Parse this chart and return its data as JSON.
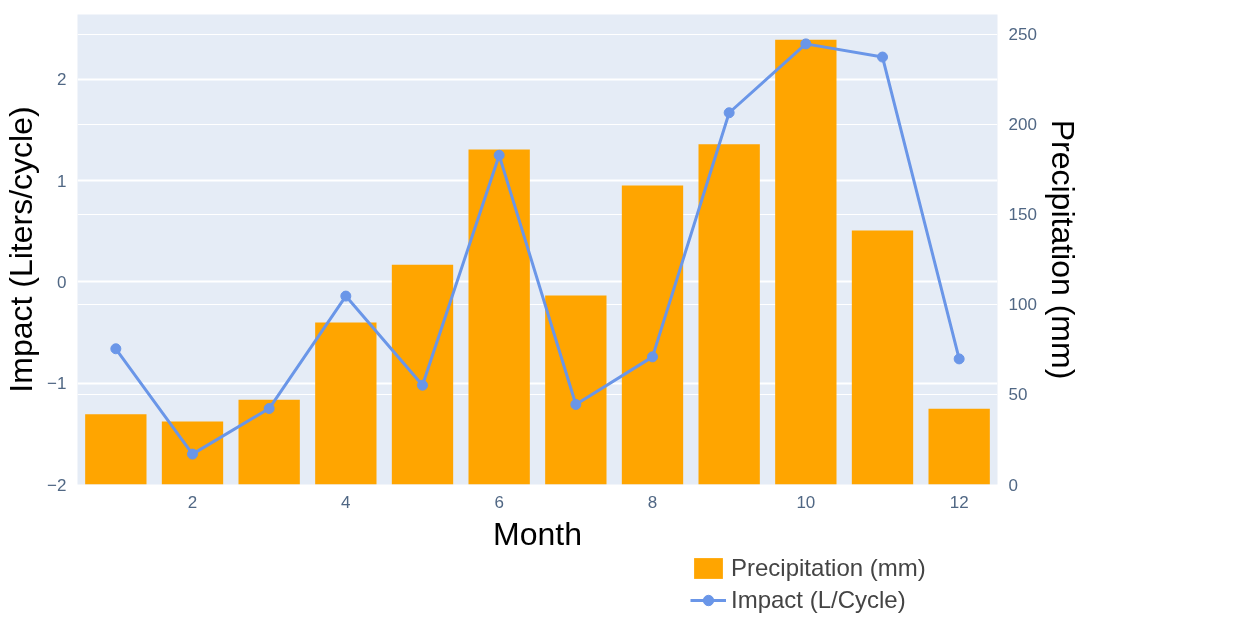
{
  "chart_data": {
    "type": "bar",
    "xlabel": "Month",
    "ylabel": "Impact (Liters/cycle)",
    "y2label": "Precipitation (mm)",
    "x": [
      1,
      2,
      3,
      4,
      5,
      6,
      7,
      8,
      9,
      10,
      11,
      12
    ],
    "xlim": [
      0.5,
      12.5
    ],
    "xticks": [
      2,
      4,
      6,
      8,
      10,
      12
    ],
    "ylim": [
      -2,
      2.64
    ],
    "yticks": [
      {
        "value": -2,
        "label": "−2"
      },
      {
        "value": -1,
        "label": "−1"
      },
      0,
      1,
      2
    ],
    "y2lim": [
      0,
      261
    ],
    "y2ticks": [
      0,
      50,
      100,
      150,
      200,
      250
    ],
    "grid": "y",
    "legend": "bottom right",
    "series": [
      {
        "name": "Precipitation (mm)",
        "axis": "y2",
        "color": "#ffa500",
        "values": [
          39,
          35,
          47,
          90,
          122,
          186,
          105,
          166,
          189,
          247,
          141,
          42
        ]
      },
      {
        "name": "Impact (L/Cycle)",
        "type": "line",
        "axis": "y",
        "color": "#6a96e8",
        "marker": "circle",
        "values": [
          -0.66,
          -1.7,
          -1.25,
          -0.14,
          -1.02,
          1.25,
          -1.21,
          -0.74,
          1.67,
          2.35,
          2.22,
          -0.76
        ]
      }
    ]
  }
}
